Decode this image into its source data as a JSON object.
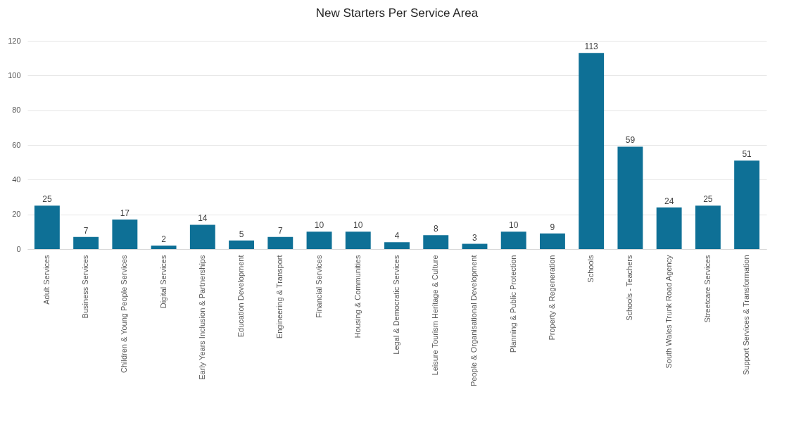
{
  "chart_data": {
    "type": "bar",
    "title": "New Starters Per Service Area",
    "categories": [
      "Adult Services",
      "Business Services",
      "Children & Young People Services",
      "Digital Services",
      "Early Years Inclusion & Partnerships",
      "Education Development",
      "Engineering & Transport",
      "Financial Services",
      "Housing & Communities",
      "Legal & Democratic Services",
      "Leisure Tourism Heritage & Culture",
      "People & Organisational Development",
      "Planning & Public Protection",
      "Property & Regeneration",
      "Schools",
      "Schools - Teachers",
      "South Wales Trunk Road Agency",
      "Streetcare Services",
      "Support Services & Transformation"
    ],
    "values": [
      25,
      7,
      17,
      2,
      14,
      5,
      7,
      10,
      10,
      4,
      8,
      3,
      10,
      9,
      113,
      59,
      24,
      25,
      51
    ],
    "color": "#0e7096",
    "ylim": [
      0,
      120
    ],
    "yticks": [
      0,
      20,
      40,
      60,
      80,
      100,
      120
    ],
    "grid": "y",
    "data_labels": true
  }
}
